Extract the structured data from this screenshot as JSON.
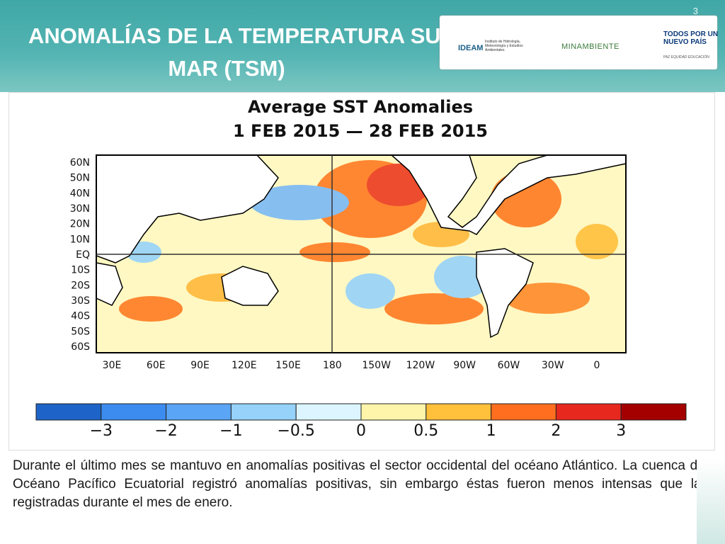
{
  "slide_number": "3",
  "title": {
    "line1": "ANOMALÍAS DE LA TEMPERATURA SUPERFICIAL DEL",
    "line2": "MAR (TSM)"
  },
  "logos": {
    "ideam": "IDEAM",
    "ideam_full": "Instituto de Hidrología, Meteorología y Estudios Ambientales",
    "minambiente": "MINAMBIENTE",
    "gobierno": "TODOS POR UN NUEVO PAÍS",
    "lema": "PAZ EQUIDAD EDUCACIÓN"
  },
  "figure": {
    "title": "Average SST Anomalies",
    "period": "1 FEB 2015 — 28 FEB 2015",
    "lat_labels": [
      "60N",
      "50N",
      "40N",
      "30N",
      "20N",
      "10N",
      "EQ",
      "10S",
      "20S",
      "30S",
      "40S",
      "50S",
      "60S"
    ],
    "lon_labels": [
      "30E",
      "60E",
      "90E",
      "120E",
      "150E",
      "180",
      "150W",
      "120W",
      "90W",
      "60W",
      "30W",
      "0"
    ],
    "colorbar": {
      "colors": [
        "#1e64c8",
        "#3c8cf0",
        "#5aa5f5",
        "#96d2fa",
        "#dcf5ff",
        "#fff5aa",
        "#ffc03c",
        "#ff6e1e",
        "#e6281e",
        "#a50000"
      ],
      "labels": [
        "−3",
        "−2",
        "−1",
        "−0.5",
        "0",
        "0.5",
        "1",
        "2",
        "3"
      ]
    }
  },
  "paragraph": "Durante el último mes se mantuvo en anomalías positivas el sector occidental del océano Atlántico. La cuenca del Océano Pacífico Ecuatorial registró anomalías positivas, sin embargo éstas fueron menos intensas que las registradas durante el mes de enero."
}
